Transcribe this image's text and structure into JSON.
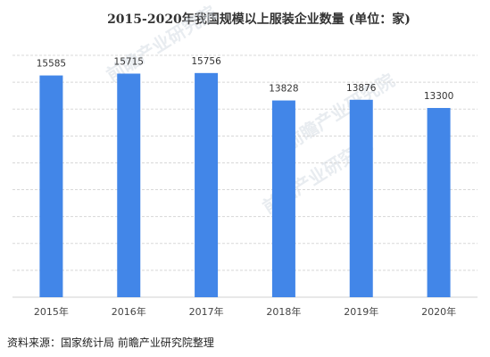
{
  "chart_data": {
    "type": "bar",
    "title": "2015-2020年我国规模以上服装企业数量 (单位：家)",
    "categories": [
      "2015年",
      "2016年",
      "2017年",
      "2018年",
      "2019年",
      "2020年"
    ],
    "values": [
      15585,
      15715,
      15756,
      13828,
      13876,
      13300
    ],
    "ylim": [
      0,
      17000
    ],
    "grid": true,
    "bar_color": "#4286E8",
    "watermark": "前瞻产业研究院"
  },
  "source": "资料来源：国家统计局 前瞻产业研究院整理"
}
